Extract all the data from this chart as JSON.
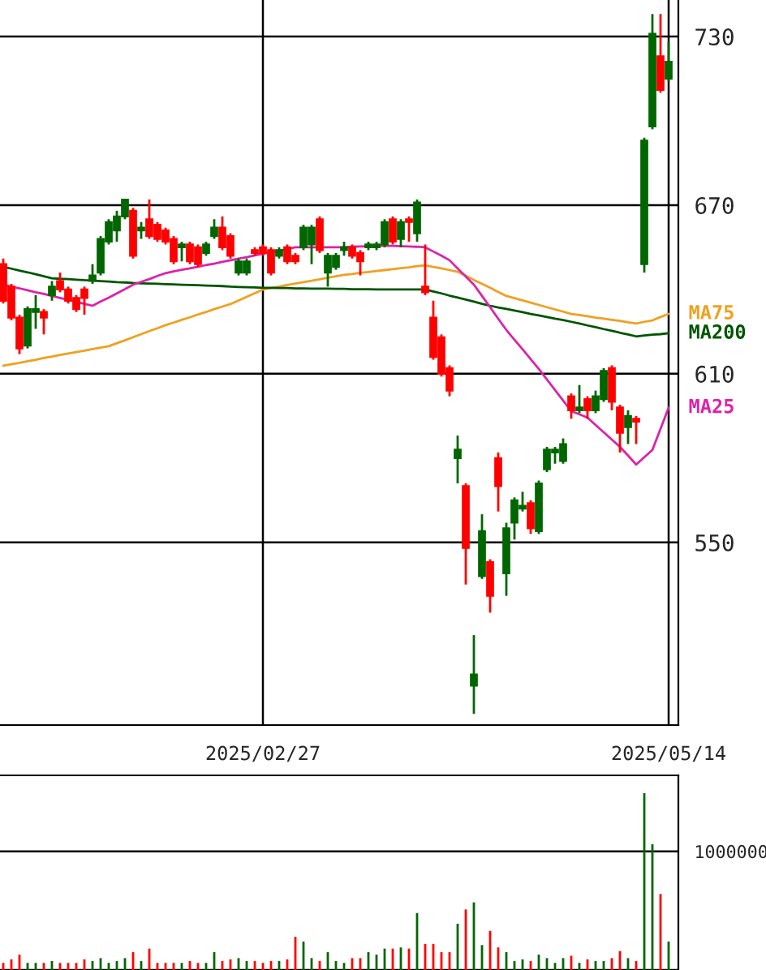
{
  "chart_data": [
    {
      "type": "candlestick",
      "categories": [
        null,
        null,
        null,
        null,
        null,
        null,
        null,
        null,
        null,
        null,
        null,
        null,
        null,
        null,
        null,
        null,
        null,
        null,
        null,
        null,
        null,
        null,
        null,
        null,
        null,
        null,
        null,
        null,
        null,
        null,
        null,
        null,
        "2025/02/27",
        null,
        null,
        null,
        null,
        null,
        null,
        null,
        null,
        null,
        null,
        null,
        null,
        null,
        null,
        null,
        null,
        null,
        null,
        null,
        null,
        null,
        null,
        null,
        null,
        null,
        null,
        null,
        null,
        null,
        null,
        null,
        null,
        null,
        null,
        null,
        null,
        null,
        null,
        null,
        null,
        null,
        null,
        null,
        null,
        null,
        null,
        null,
        null,
        null,
        "2025/05/14"
      ],
      "ohlc": [
        [
          649,
          651,
          635,
          636
        ],
        [
          641,
          642,
          629,
          630
        ],
        [
          630,
          631,
          617,
          619
        ],
        [
          620,
          634,
          619,
          633
        ],
        [
          632,
          638,
          626,
          633
        ],
        [
          632,
          633,
          624,
          630
        ],
        [
          638,
          643,
          636,
          641
        ],
        [
          643,
          646,
          639,
          640
        ],
        [
          640,
          641,
          635,
          636
        ],
        [
          637,
          638,
          632,
          633
        ],
        [
          640,
          641,
          631,
          637
        ],
        [
          643,
          649,
          642,
          645
        ],
        [
          646,
          659,
          645,
          658
        ],
        [
          657,
          665,
          656,
          664
        ],
        [
          661,
          668,
          657,
          666
        ],
        [
          666,
          672,
          665,
          672
        ],
        [
          668,
          669,
          651,
          652
        ],
        [
          661,
          664,
          658,
          662
        ],
        [
          665,
          672,
          658,
          659
        ],
        [
          663,
          664,
          657,
          658
        ],
        [
          661,
          662,
          656,
          657
        ],
        [
          658,
          659,
          649,
          650
        ],
        [
          655,
          657,
          650,
          656
        ],
        [
          656,
          657,
          649,
          650
        ],
        [
          655,
          656,
          648,
          649
        ],
        [
          653,
          657,
          652,
          656
        ],
        [
          659,
          665,
          658,
          662
        ],
        [
          662,
          666,
          654,
          655
        ],
        [
          659,
          660,
          651,
          652
        ],
        [
          646,
          651,
          645,
          650
        ],
        [
          646,
          651,
          645,
          650
        ],
        [
          654,
          655,
          652,
          653
        ],
        [
          655,
          656,
          652,
          653
        ],
        [
          654,
          655,
          645,
          646
        ],
        [
          652,
          655,
          651,
          654
        ],
        [
          655,
          656,
          649,
          650
        ],
        [
          652,
          653,
          649,
          650
        ],
        [
          655,
          663,
          654,
          662
        ],
        [
          656,
          663,
          649,
          662
        ],
        [
          665,
          666,
          653,
          654
        ],
        [
          646,
          653,
          641,
          652
        ],
        [
          648,
          653,
          647,
          652
        ],
        [
          654,
          657,
          652,
          655
        ],
        [
          655,
          656,
          651,
          652
        ],
        [
          653,
          654,
          645,
          650
        ],
        [
          655,
          657,
          654,
          656
        ],
        [
          655,
          657,
          654,
          656
        ],
        [
          656,
          665,
          655,
          664
        ],
        [
          665,
          666,
          656,
          657
        ],
        [
          658,
          665,
          655,
          664
        ],
        [
          665,
          666,
          657,
          664
        ],
        [
          660,
          672,
          657,
          671
        ],
        [
          641,
          656,
          638,
          639
        ],
        [
          630,
          636,
          615,
          616
        ],
        [
          623,
          624,
          609,
          610
        ],
        [
          612,
          613,
          602,
          604
        ],
        [
          580,
          588,
          571,
          583
        ],
        [
          570,
          571,
          535,
          548
        ],
        [
          499,
          517,
          489,
          503
        ],
        [
          538,
          560,
          537,
          554
        ],
        [
          543,
          544,
          525,
          531
        ],
        [
          580,
          582,
          561,
          570
        ],
        [
          539,
          557,
          531,
          555
        ],
        [
          557,
          566,
          551,
          565
        ],
        [
          562,
          568,
          561,
          563
        ],
        [
          564,
          565,
          553,
          555
        ],
        [
          554,
          572,
          553,
          571
        ],
        [
          576,
          584,
          575,
          583
        ],
        [
          582,
          584,
          578,
          583
        ],
        [
          579,
          587,
          578,
          585
        ],
        [
          602,
          603,
          594,
          597
        ],
        [
          597,
          606,
          596,
          598
        ],
        [
          601,
          602,
          594,
          597
        ],
        [
          597,
          604,
          596,
          602
        ],
        [
          601,
          612,
          600,
          611
        ],
        [
          612,
          613,
          597,
          600
        ],
        [
          598,
          599,
          582,
          589
        ],
        [
          591,
          597,
          585,
          595
        ],
        [
          594,
          595,
          585,
          593
        ],
        [
          649,
          694,
          646,
          693
        ],
        [
          698,
          738,
          697,
          731
        ],
        [
          723,
          738,
          710,
          711
        ],
        [
          715,
          728,
          714,
          721
        ]
      ],
      "colors": [
        "#ff0000",
        "#ff0000",
        "#ff0000",
        "#006600",
        "#006600",
        "#ff0000",
        "#006600",
        "#ff0000",
        "#ff0000",
        "#ff0000",
        "#ff0000",
        "#006600",
        "#006600",
        "#006600",
        "#006600",
        "#006600",
        "#ff0000",
        "#006600",
        "#ff0000",
        "#ff0000",
        "#ff0000",
        "#ff0000",
        "#006600",
        "#ff0000",
        "#ff0000",
        "#006600",
        "#006600",
        "#ff0000",
        "#ff0000",
        "#006600",
        "#006600",
        "#ff0000",
        "#ff0000",
        "#ff0000",
        "#006600",
        "#ff0000",
        "#ff0000",
        "#006600",
        "#006600",
        "#ff0000",
        "#006600",
        "#006600",
        "#006600",
        "#ff0000",
        "#ff0000",
        "#006600",
        "#006600",
        "#006600",
        "#ff0000",
        "#006600",
        "#ff0000",
        "#006600",
        "#ff0000",
        "#ff0000",
        "#ff0000",
        "#ff0000",
        "#006600",
        "#ff0000",
        "#006600",
        "#006600",
        "#ff0000",
        "#ff0000",
        "#006600",
        "#006600",
        "#006600",
        "#ff0000",
        "#006600",
        "#006600",
        "#006600",
        "#006600",
        "#ff0000",
        "#006600",
        "#ff0000",
        "#006600",
        "#006600",
        "#ff0000",
        "#ff0000",
        "#006600",
        "#ff0000",
        "#006600",
        "#006600",
        "#ff0000",
        "#006600"
      ],
      "series": [
        {
          "name": "MA75",
          "type": "line",
          "color": "#f0a020",
          "values": [
            612.9,
            613.4,
            613.9,
            614.5,
            615,
            615.6,
            616.1,
            616.7,
            617.2,
            617.7,
            618.2,
            618.8,
            619.3,
            619.8,
            620.9,
            621.9,
            623,
            624.1,
            625.2,
            626.2,
            627.3,
            628.2,
            629.2,
            630.1,
            631.1,
            632,
            633,
            633.9,
            634.8,
            636.1,
            637.4,
            638.7,
            640,
            640.5,
            641,
            641.6,
            642.1,
            642.6,
            643.1,
            643.6,
            644.2,
            644.7,
            645.2,
            645.5,
            645.9,
            646.2,
            646.6,
            646.9,
            647.2,
            647.6,
            647.9,
            648.3,
            648.6,
            648,
            647.5,
            646.9,
            646.3,
            644.9,
            643.4,
            642,
            640.6,
            639.1,
            637.7,
            636.9,
            636.1,
            635.3,
            634.5,
            633.7,
            632.9,
            632.1,
            631.3,
            630.9,
            630.5,
            630,
            629.6,
            629.2,
            628.8,
            628.3,
            627.9,
            628.5,
            629,
            630.2,
            631.3
          ]
        },
        {
          "name": "MA200",
          "type": "line",
          "color": "#005500",
          "values": [
            648.1,
            647.4,
            646.7,
            646.1,
            645.4,
            644.7,
            644,
            643.8,
            643.7,
            643.5,
            643.3,
            643.2,
            643,
            642.8,
            642.6,
            642.5,
            642.3,
            642.2,
            642.1,
            642,
            641.9,
            641.8,
            641.7,
            641.6,
            641.5,
            641.4,
            641.3,
            641.2,
            641,
            640.9,
            640.8,
            640.7,
            640.6,
            640.6,
            640.5,
            640.5,
            640.4,
            640.4,
            640.3,
            640.3,
            640.3,
            640.2,
            640.2,
            640.1,
            640.1,
            640.1,
            640,
            640,
            640,
            640,
            640,
            640,
            640,
            639.3,
            638.6,
            637.8,
            637.1,
            636.4,
            635.7,
            634.9,
            634.2,
            633.6,
            633.1,
            632.5,
            631.9,
            631.3,
            630.8,
            630.2,
            629.6,
            629.1,
            628.5,
            627.9,
            627.2,
            626.6,
            625.9,
            625.3,
            624.6,
            624,
            623.3,
            623.6,
            623.9,
            624.1,
            624.4
          ]
        },
        {
          "name": "MA25",
          "type": "line",
          "color": "#dd22aa",
          "values": [
            641.7,
            641,
            640.4,
            639.7,
            639,
            638.4,
            637.7,
            637,
            636.3,
            635.6,
            634.9,
            634.2,
            635.7,
            637.1,
            638.6,
            640.1,
            641.7,
            642.7,
            643.7,
            644.8,
            645.8,
            646.4,
            647,
            647.5,
            648.1,
            648.7,
            649.2,
            649.8,
            650.4,
            651,
            651.5,
            652.1,
            652.7,
            653.3,
            653.8,
            654.4,
            655,
            655,
            655,
            655,
            655,
            655,
            655,
            655.2,
            655.3,
            655.4,
            655.5,
            655.5,
            655.5,
            655.4,
            655.3,
            655.2,
            655,
            653.5,
            652,
            650.4,
            647.5,
            644.6,
            641.7,
            637.7,
            633.7,
            629.6,
            625.6,
            622.1,
            618.7,
            615.2,
            611.7,
            608,
            604.2,
            600.5,
            596.7,
            595.6,
            594.4,
            591.8,
            589.2,
            586.6,
            584,
            580.9,
            577.7,
            580.3,
            582.9,
            590.4,
            597.9
          ]
        }
      ],
      "ylim": [
        485,
        743
      ],
      "yticks": [
        550,
        610,
        670,
        730
      ],
      "grid": true,
      "legend": "right"
    },
    {
      "type": "bar",
      "categories": [
        null,
        null,
        null,
        null,
        null,
        null,
        null,
        null,
        null,
        null,
        null,
        null,
        null,
        null,
        null,
        null,
        null,
        null,
        null,
        null,
        null,
        null,
        null,
        null,
        null,
        null,
        null,
        null,
        null,
        null,
        null,
        null,
        null,
        null,
        null,
        null,
        null,
        null,
        null,
        null,
        null,
        null,
        null,
        null,
        null,
        null,
        null,
        null,
        null,
        null,
        null,
        null,
        null,
        null,
        null,
        null,
        null,
        null,
        null,
        null,
        null,
        null,
        null,
        null,
        null,
        null,
        null,
        null,
        null,
        null,
        null,
        null,
        null,
        null,
        null,
        null,
        null,
        null,
        null,
        null,
        null,
        null,
        null
      ],
      "values": [
        60000,
        90000,
        130000,
        60000,
        60000,
        60000,
        75000,
        60000,
        60000,
        60000,
        90000,
        75000,
        100000,
        60000,
        75000,
        100000,
        150000,
        75000,
        180000,
        60000,
        60000,
        60000,
        60000,
        75000,
        60000,
        60000,
        150000,
        75000,
        90000,
        100000,
        75000,
        75000,
        60000,
        75000,
        75000,
        90000,
        280000,
        240000,
        100000,
        75000,
        150000,
        75000,
        60000,
        100000,
        100000,
        150000,
        130000,
        180000,
        180000,
        190000,
        180000,
        480000,
        220000,
        220000,
        150000,
        150000,
        390000,
        510000,
        570000,
        210000,
        330000,
        190000,
        150000,
        75000,
        90000,
        75000,
        130000,
        100000,
        60000,
        100000,
        120000,
        60000,
        90000,
        75000,
        75000,
        100000,
        160000,
        100000,
        75000,
        1490000,
        1060000,
        640000,
        240000
      ],
      "ylim": [
        0,
        1640000
      ],
      "yticks": [
        {
          "value": 0,
          "label": null
        },
        1000000
      ],
      "grid": "y",
      "tick_labels": "y",
      "colors": [
        "#ff0000",
        "#ff0000",
        "#ff0000",
        "#006600",
        "#006600",
        "#ff0000",
        "#006600",
        "#ff0000",
        "#ff0000",
        "#ff0000",
        "#ff0000",
        "#006600",
        "#006600",
        "#006600",
        "#006600",
        "#006600",
        "#ff0000",
        "#006600",
        "#ff0000",
        "#ff0000",
        "#ff0000",
        "#ff0000",
        "#006600",
        "#ff0000",
        "#ff0000",
        "#006600",
        "#006600",
        "#ff0000",
        "#ff0000",
        "#006600",
        "#006600",
        "#ff0000",
        "#ff0000",
        "#ff0000",
        "#006600",
        "#ff0000",
        "#ff0000",
        "#006600",
        "#006600",
        "#ff0000",
        "#006600",
        "#006600",
        "#006600",
        "#ff0000",
        "#ff0000",
        "#006600",
        "#006600",
        "#006600",
        "#ff0000",
        "#006600",
        "#ff0000",
        "#006600",
        "#ff0000",
        "#ff0000",
        "#ff0000",
        "#ff0000",
        "#006600",
        "#ff0000",
        "#006600",
        "#006600",
        "#ff0000",
        "#ff0000",
        "#006600",
        "#006600",
        "#006600",
        "#ff0000",
        "#006600",
        "#006600",
        "#006600",
        "#006600",
        "#ff0000",
        "#006600",
        "#ff0000",
        "#006600",
        "#006600",
        "#ff0000",
        "#ff0000",
        "#006600",
        "#ff0000",
        "#006600",
        "#006600",
        "#ff0000",
        "#006600"
      ],
      "legend": false
    }
  ]
}
